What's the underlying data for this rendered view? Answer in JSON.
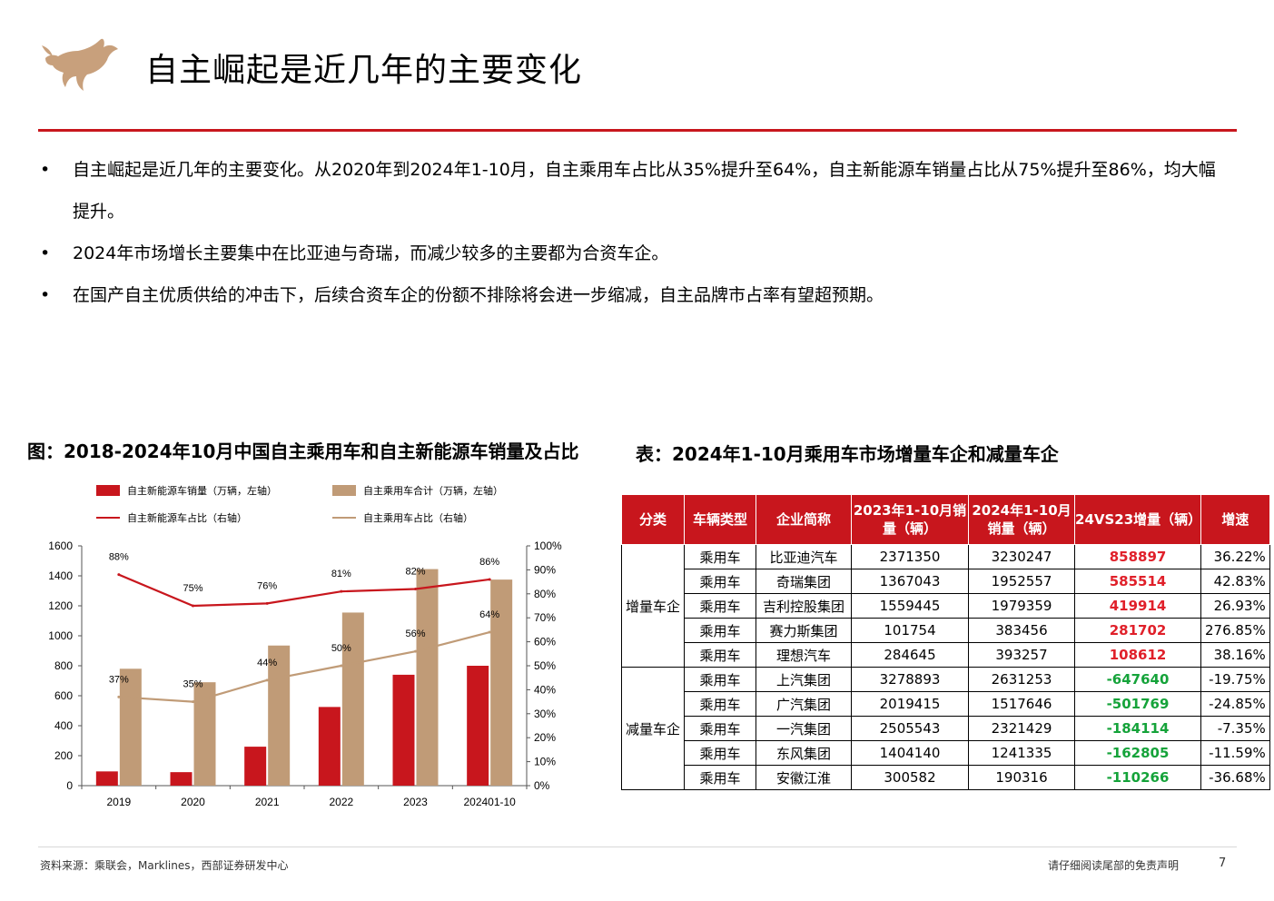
{
  "header": {
    "title": "自主崛起是近几年的主要变化"
  },
  "bullets": [
    "自主崛起是近几年的主要变化。从2020年到2024年1-10月，自主乘用车占比从35%提升至64%，自主新能源车销量占比从75%提升至86%，均大幅提升。",
    "2024年市场增长主要集中在比亚迪与奇瑞，而减少较多的主要都为合资车企。",
    "在国产自主优质供给的冲击下，后续合资车企的份额不排除将会进一步缩减，自主品牌市占率有望超预期。"
  ],
  "bullet_symbol": "•",
  "chart_title": "图：2018-2024年10月中国自主乘用车和自主新能源车销量及占比",
  "table_title": "表：2024年1-10月乘用车市场增量车企和减量车企",
  "chart_data": {
    "type": "bar",
    "categories": [
      "2019",
      "2020",
      "2021",
      "2022",
      "2023",
      "202401-10"
    ],
    "series": [
      {
        "name": "自主新能源车销量（万辆，左轴）",
        "kind": "bar",
        "axis": "left",
        "color": "#c8161d",
        "values": [
          95,
          90,
          260,
          525,
          740,
          800
        ]
      },
      {
        "name": "自主乘用车合计（万辆，左轴）",
        "kind": "bar",
        "axis": "left",
        "color": "#c09b77",
        "values": [
          780,
          690,
          935,
          1155,
          1445,
          1375
        ]
      },
      {
        "name": "自主新能源车占比（右轴）",
        "kind": "line",
        "axis": "right",
        "color": "#c8161d",
        "values": [
          88,
          75,
          76,
          81,
          82,
          86
        ],
        "labels": [
          "88%",
          "75%",
          "76%",
          "81%",
          "82%",
          "86%"
        ]
      },
      {
        "name": "自主乘用车占比（右轴）",
        "kind": "line",
        "axis": "right",
        "color": "#c09b77",
        "values": [
          37,
          35,
          44,
          50,
          56,
          64
        ],
        "labels": [
          "37%",
          "35%",
          "44%",
          "50%",
          "56%",
          "64%"
        ]
      }
    ],
    "left_axis": {
      "ticks": [
        "0",
        "200",
        "400",
        "600",
        "800",
        "1000",
        "1200",
        "1400",
        "1600"
      ],
      "range": [
        0,
        1600
      ]
    },
    "right_axis": {
      "ticks": [
        "0%",
        "10%",
        "20%",
        "30%",
        "40%",
        "50%",
        "60%",
        "70%",
        "80%",
        "90%",
        "100%"
      ],
      "range": [
        0,
        100
      ]
    },
    "legend_position": "top",
    "grid": false
  },
  "table": {
    "headers": [
      "分类",
      "车辆类型",
      "企业简称",
      "2023年1-10月销量（辆）",
      "2024年1-10月销量（辆）",
      "24VS23增量（辆）",
      "增速"
    ],
    "groups": [
      {
        "category": "增量车企",
        "rows": [
          {
            "type": "乘用车",
            "company": "比亚迪汽车",
            "y2023": "2371350",
            "y2024": "3230247",
            "delta": "858897",
            "rate": "36.22%"
          },
          {
            "type": "乘用车",
            "company": "奇瑞集团",
            "y2023": "1367043",
            "y2024": "1952557",
            "delta": "585514",
            "rate": "42.83%"
          },
          {
            "type": "乘用车",
            "company": "吉利控股集团",
            "y2023": "1559445",
            "y2024": "1979359",
            "delta": "419914",
            "rate": "26.93%"
          },
          {
            "type": "乘用车",
            "company": "赛力斯集团",
            "y2023": "101754",
            "y2024": "383456",
            "delta": "281702",
            "rate": "276.85%"
          },
          {
            "type": "乘用车",
            "company": "理想汽车",
            "y2023": "284645",
            "y2024": "393257",
            "delta": "108612",
            "rate": "38.16%"
          }
        ]
      },
      {
        "category": "减量车企",
        "rows": [
          {
            "type": "乘用车",
            "company": "上汽集团",
            "y2023": "3278893",
            "y2024": "2631253",
            "delta": "-647640",
            "rate": "-19.75%"
          },
          {
            "type": "乘用车",
            "company": "广汽集团",
            "y2023": "2019415",
            "y2024": "1517646",
            "delta": "-501769",
            "rate": "-24.85%"
          },
          {
            "type": "乘用车",
            "company": "一汽集团",
            "y2023": "2505543",
            "y2024": "2321429",
            "delta": "-184114",
            "rate": "-7.35%"
          },
          {
            "type": "乘用车",
            "company": "东风集团",
            "y2023": "1404140",
            "y2024": "1241335",
            "delta": "-162805",
            "rate": "-11.59%"
          },
          {
            "type": "乘用车",
            "company": "安徽江淮",
            "y2023": "300582",
            "y2024": "190316",
            "delta": "-110266",
            "rate": "-36.68%"
          }
        ]
      }
    ]
  },
  "footer": {
    "source": "资料来源：乘联会，Marklines，西部证券研发中心",
    "disclaimer": "请仔细阅读尾部的免责声明",
    "page": "7"
  },
  "colors": {
    "brand_red": "#c8161d",
    "bar_tan": "#c09b77",
    "increase_red": "#e0202a",
    "decrease_green": "#15a33a"
  },
  "icons": {
    "logo": "bull-logo-icon"
  }
}
